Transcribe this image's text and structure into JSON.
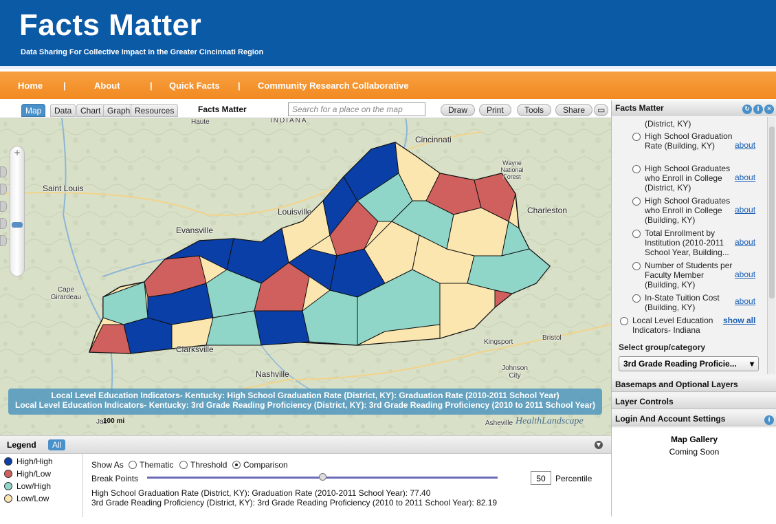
{
  "header": {
    "title": "Facts Matter",
    "subtitle": "Data Sharing For Collective Impact in the Greater Cincinnati Region"
  },
  "nav": {
    "items": [
      "Home",
      "About",
      "Quick Facts",
      "Community Research Collaborative"
    ]
  },
  "toolbar": {
    "tabs": [
      "Map",
      "Data",
      "Chart",
      "Graph",
      "Resources"
    ],
    "active_tab": "Map",
    "title": "Facts Matter",
    "search_placeholder": "Search for a place on the map",
    "buttons": [
      "Draw",
      "Print",
      "Tools",
      "Share"
    ]
  },
  "map": {
    "place_labels": [
      "Saint Louis",
      "Evansville",
      "Louisville",
      "Cincinnati",
      "Charleston",
      "Cape Girardeau",
      "Clarksville",
      "Nashville",
      "Kingsport",
      "Bristol",
      "Johnson City",
      "Asheville",
      "Jac",
      "Haute",
      "INDIANA",
      "Wayne National Forest"
    ],
    "banner_line1": "Local Level Education Indicators- Kentucky: High School Graduation Rate (District, KY): Graduation Rate (2010-2011 School Year)",
    "banner_line2": "Local Level Education Indicators- Kentucky: 3rd Grade Reading Proficiency (District, KY): 3rd Grade Reading Proficiency (2010 to 2011 School Year)",
    "scale": "100 mi",
    "credit": "HealthLandscape",
    "colors": {
      "high_high": "#0a3fa8",
      "high_low": "#d0605e",
      "low_high": "#8fd6c9",
      "low_low": "#fbe6b0"
    }
  },
  "legend": {
    "title": "Legend",
    "all_label": "All",
    "items": [
      {
        "label": "High/High",
        "color": "#0a3fa8"
      },
      {
        "label": "High/Low",
        "color": "#d0605e"
      },
      {
        "label": "Low/High",
        "color": "#8fd6c9"
      },
      {
        "label": "Low/Low",
        "color": "#fbe6b0"
      }
    ],
    "show_as_label": "Show As",
    "show_as_options": [
      "Thematic",
      "Threshold",
      "Comparison"
    ],
    "show_as_selected": "Comparison",
    "break_points_label": "Break Points",
    "percentile_value": "50",
    "percentile_label": "Percentile",
    "stat1": "High School Graduation Rate (District, KY): Graduation Rate (2010-2011 School Year): 77.40",
    "stat2": "3rd Grade Reading Proficiency (District, KY): 3rd Grade Reading Proficiency (2010 to 2011 School Year): 82.19"
  },
  "panel": {
    "title": "Facts Matter",
    "items": [
      {
        "label": "(District, KY)"
      },
      {
        "label": "High School Graduation Rate (Building, KY)",
        "link": "about"
      },
      {
        "label": "High School Graduates who Enroll in College (District, KY)",
        "link": "about"
      },
      {
        "label": "High School Graduates who Enroll in College (Building, KY)",
        "link": "about"
      },
      {
        "label": "Total Enrollment by Institution (2010-2011 School Year, Building...",
        "link": "about"
      },
      {
        "label": "Number of Students per Faculty Member (Building, KY)",
        "link": "about"
      },
      {
        "label": "In-State Tuition Cost (Building, KY)",
        "link": "about"
      },
      {
        "label": "Local Level Education Indicators- Indiana",
        "link": "show all"
      }
    ],
    "select_label": "Select group/category",
    "select_value": "3rd Grade Reading Proficie...",
    "sections": [
      "Basemaps and Optional Layers",
      "Layer Controls",
      "Login And Account Settings"
    ],
    "gallery_title": "Map Gallery",
    "gallery_text": "Coming Soon"
  }
}
